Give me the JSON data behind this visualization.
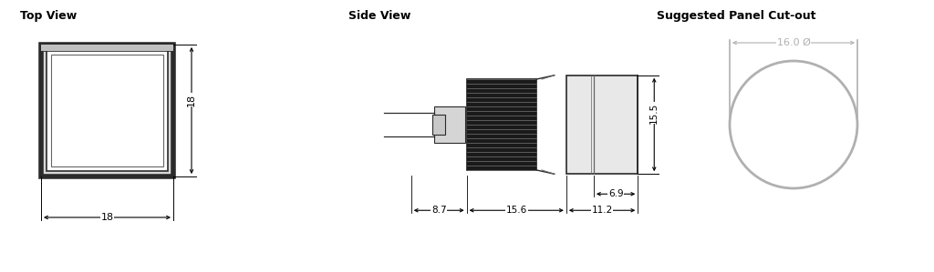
{
  "bg_color": "#ffffff",
  "line_color": "#000000",
  "gray_color": "#b0b0b0",
  "dark_color": "#2a2a2a",
  "med_color": "#666666",
  "titles": {
    "top_view": "Top View",
    "side_view": "Side View",
    "cutout": "Suggested Panel Cut-out"
  },
  "cutout_label": "16.0 Ø",
  "dims": {
    "top_18h": "18",
    "top_18w": "18",
    "sv_87": "8.7",
    "sv_156": "15.6",
    "sv_112": "11.2",
    "sv_69": "6.9",
    "sv_155": "15.5"
  }
}
